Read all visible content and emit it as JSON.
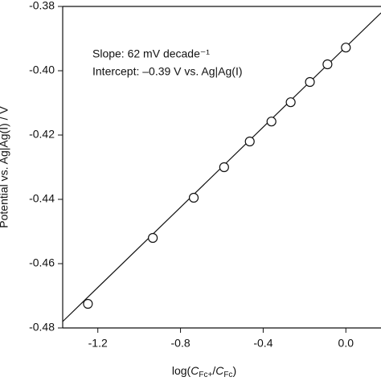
{
  "chart_data": {
    "type": "scatter",
    "annotations": [
      "Slope: 62 mV decade⁻¹",
      "Intercept: –0.39 V vs. Ag|Ag(I)"
    ],
    "xlabel": {
      "prefix": "log(",
      "c1": "C",
      "sub1": "Fc+",
      "slash": "/",
      "c2": "C",
      "sub2": "Fc",
      "suffix": ")"
    },
    "ylabel": "Potential vs. Ag|Ag(I) / V",
    "x": [
      -1.248,
      -0.934,
      -0.736,
      -0.589,
      -0.465,
      -0.36,
      -0.267,
      -0.174,
      -0.089,
      0.0
    ],
    "values": [
      -0.4725,
      -0.452,
      -0.4395,
      -0.43,
      -0.422,
      -0.4158,
      -0.4098,
      -0.4035,
      -0.398,
      -0.3928
    ],
    "fit": {
      "x": [
        -1.37,
        0.17
      ],
      "values": [
        -0.478,
        -0.382
      ]
    },
    "xlim": [
      -1.37,
      0.17
    ],
    "ylim": [
      -0.48,
      -0.38
    ],
    "xticks": [
      -1.2,
      -0.8,
      -0.4,
      {
        "value": 0,
        "label": "0.0"
      }
    ],
    "yticks": [
      -0.38,
      {
        "value": -0.4,
        "label": "-0.40"
      },
      -0.42,
      -0.44,
      -0.46,
      -0.48
    ]
  }
}
